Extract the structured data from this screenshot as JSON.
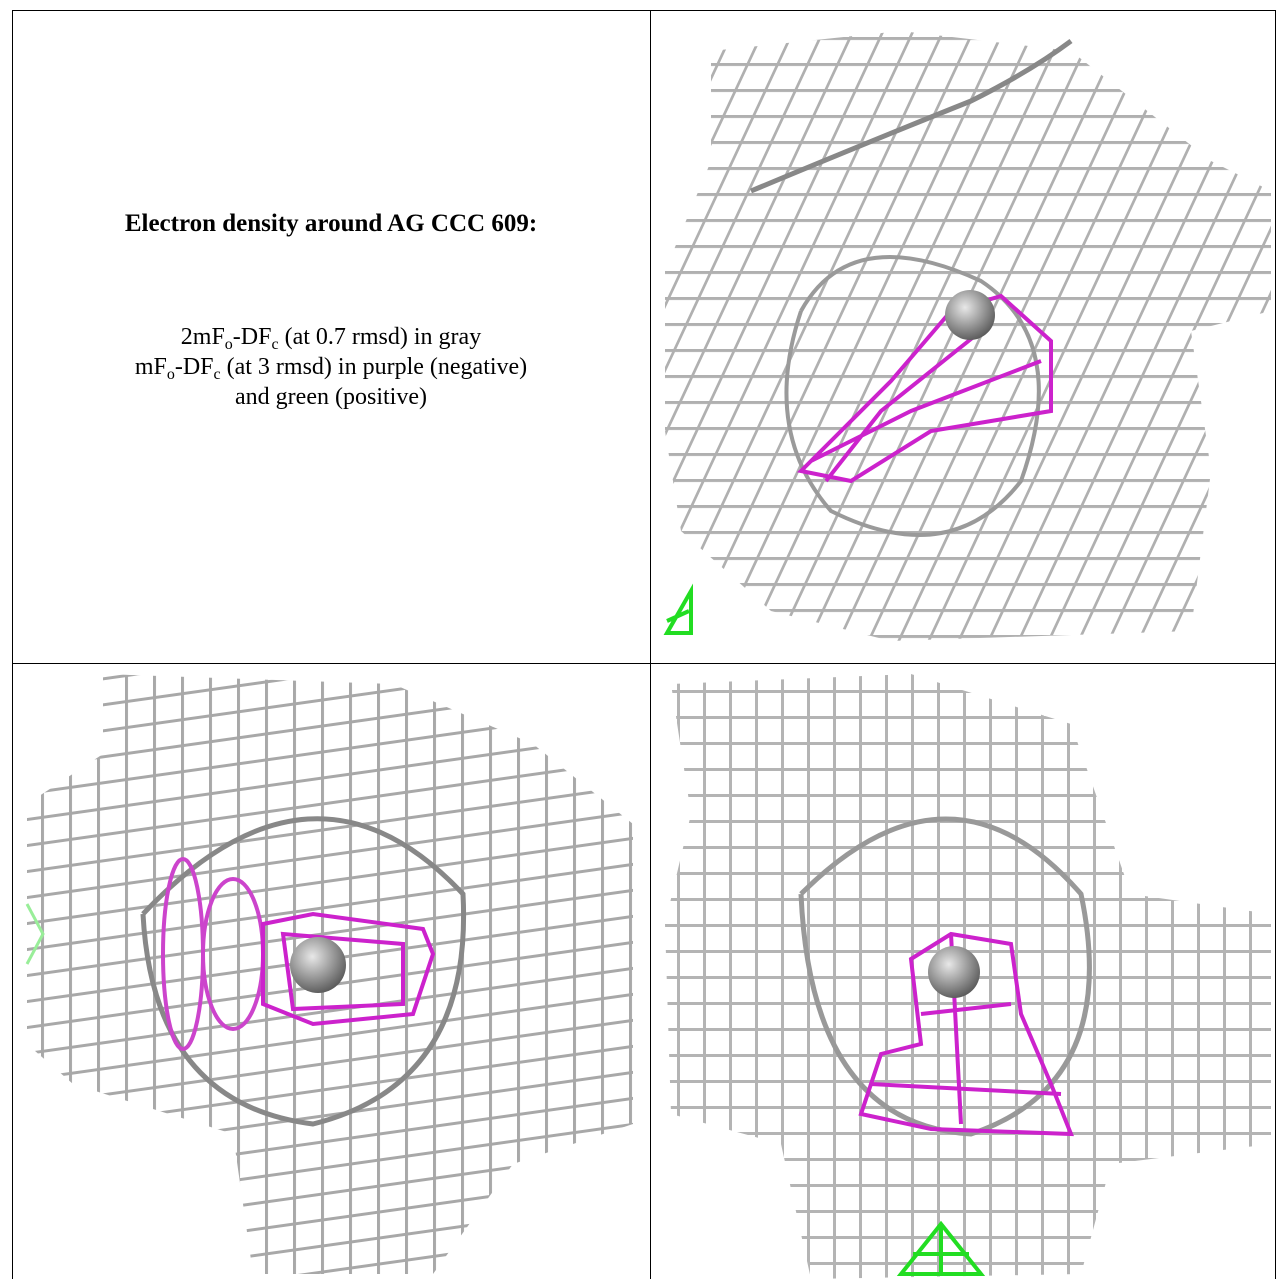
{
  "caption": {
    "title": "Electron density around AG CCC 609:",
    "lines": [
      [
        {
          "text": "2mF"
        },
        {
          "sub": "o"
        },
        {
          "text": "-DF"
        },
        {
          "sub": "c"
        },
        {
          "text": " (at 0.7 rmsd) in gray"
        }
      ],
      [
        {
          "text": "mF"
        },
        {
          "sub": "o"
        },
        {
          "text": "-DF"
        },
        {
          "sub": "c"
        },
        {
          "text": " (at 3 rmsd) in purple (negative)"
        }
      ],
      [
        {
          "text": "and green (positive)"
        }
      ]
    ]
  }
}
